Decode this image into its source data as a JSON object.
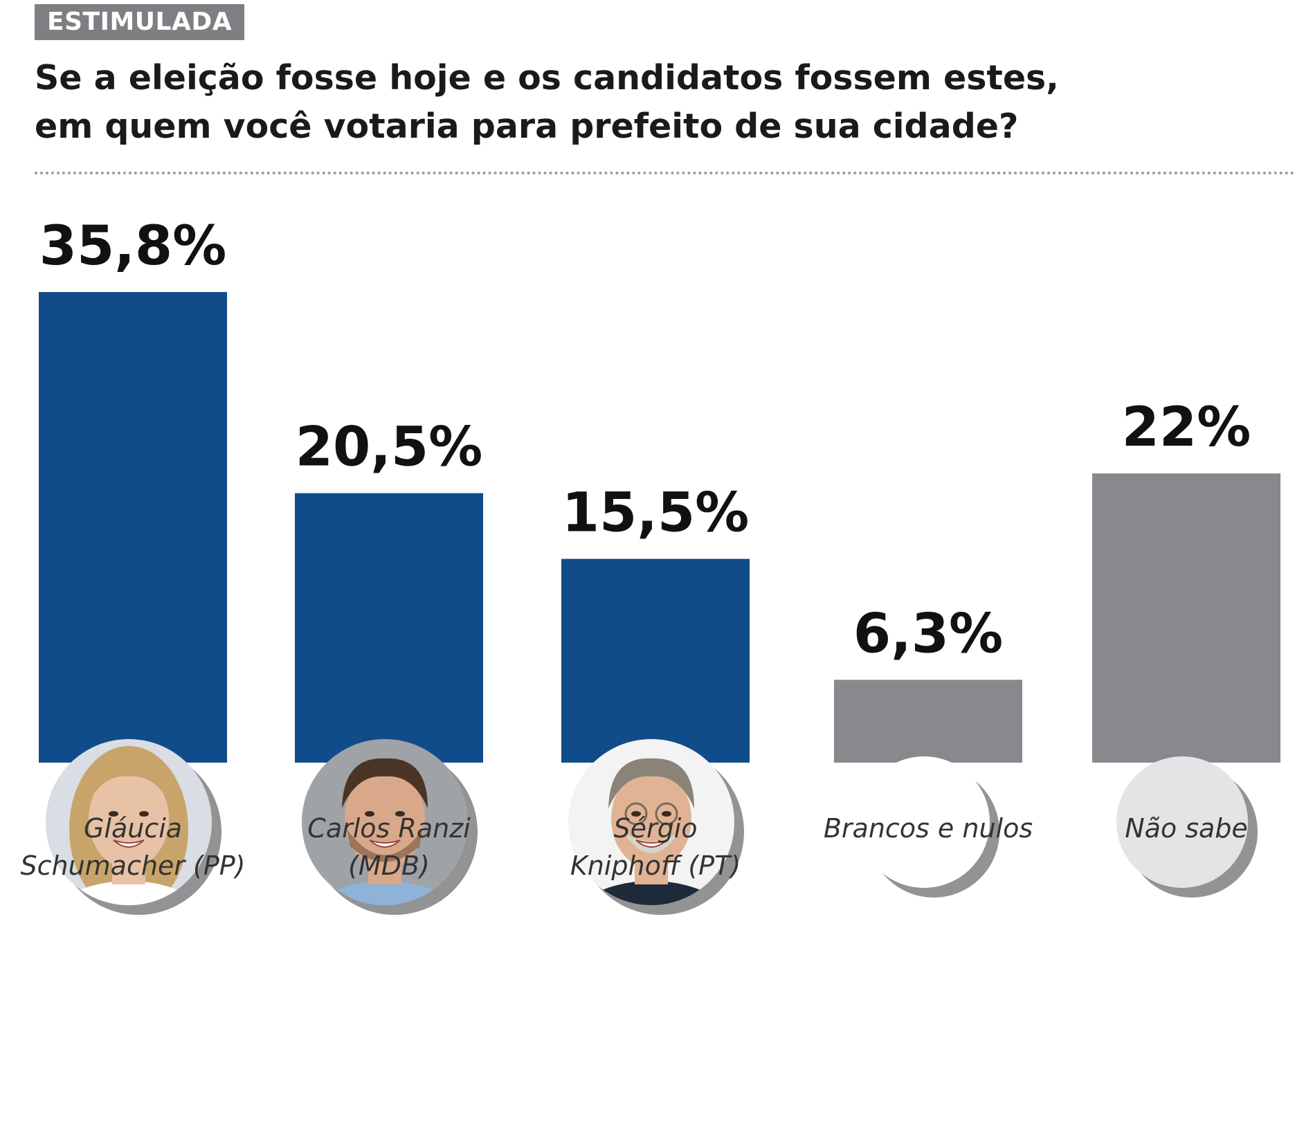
{
  "header": {
    "badge": "ESTIMULADA",
    "question_line1": "Se a eleição fosse hoje e os candidatos fossem estes,",
    "question_line2": "em quem você votaria para prefeito de sua cidade?"
  },
  "colors": {
    "candidate": "#114c8a",
    "other": "#88898d",
    "badge": "#7d7f83"
  },
  "chart_data": {
    "type": "bar",
    "categories": [
      "Gláucia Schumacher (PP)",
      "Carlos Ranzi (MDB)",
      "Sérgio Kniphoff (PT)",
      "Brancos e nulos",
      "Não sabe"
    ],
    "label_lines": [
      [
        "Gláucia",
        "Schumacher (PP)"
      ],
      [
        "Carlos Ranzi",
        "(MDB)"
      ],
      [
        "Sérgio",
        "Kniphoff (PT)"
      ],
      [
        "Brancos e nulos"
      ],
      [
        "Não sabe"
      ]
    ],
    "values": [
      35.8,
      20.5,
      15.5,
      6.3,
      22
    ],
    "value_labels": [
      "35,8%",
      "20,5%",
      "15,5%",
      "6,3%",
      "22%"
    ],
    "groups": [
      "candidate",
      "candidate",
      "candidate",
      "other",
      "other"
    ],
    "avatar_kind": [
      "photo",
      "photo",
      "photo",
      "blank-white",
      "blank-gray"
    ],
    "ylim": [
      0,
      35.8
    ],
    "grid": false,
    "legend": "none"
  }
}
